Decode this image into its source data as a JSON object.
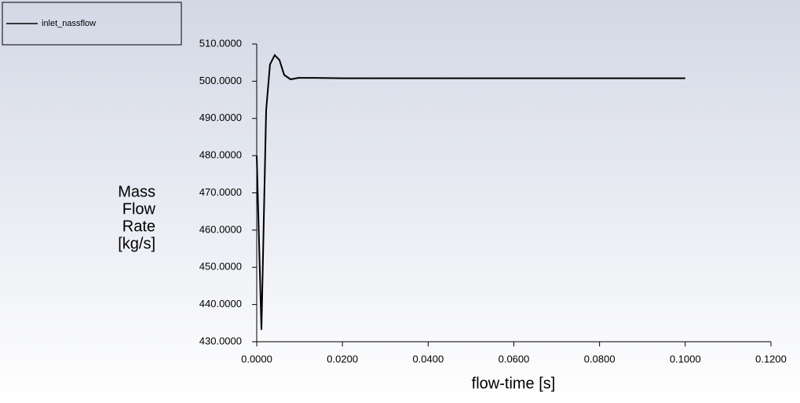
{
  "chart_data": {
    "type": "line",
    "xlabel": "flow-time [s]",
    "ylabel": [
      "Mass",
      "Flow",
      "Rate",
      "[kg/s]"
    ],
    "legend": "top-left",
    "series": [
      {
        "name": "inlet_nassflow",
        "color": "#000000",
        "x": [
          0,
          0.0011,
          0.0022,
          0.0031,
          0.0042,
          0.0053,
          0.0064,
          0.0079,
          0.0097,
          0.0134,
          0.02,
          0.1
        ],
        "values": [
          480,
          433.2,
          492.2,
          504.5,
          507.0,
          505.7,
          501.7,
          500.5,
          500.9,
          500.9,
          500.8,
          500.8
        ]
      }
    ],
    "xlim": [
      0,
      0.12
    ],
    "xticks": [
      {
        "value": 0,
        "label": "0.0000"
      },
      {
        "value": 0.02,
        "label": "0.0200"
      },
      {
        "value": 0.04,
        "label": "0.0400"
      },
      {
        "value": 0.06,
        "label": "0.0600"
      },
      {
        "value": 0.08,
        "label": "0.0800"
      },
      {
        "value": 0.1,
        "label": "0.1000"
      },
      {
        "value": 0.12,
        "label": "0.1200"
      }
    ],
    "ylim": [
      430,
      510
    ],
    "yticks": [
      {
        "value": 430,
        "label": "430.0000"
      },
      {
        "value": 440,
        "label": "440.0000"
      },
      {
        "value": 450,
        "label": "450.0000"
      },
      {
        "value": 460,
        "label": "460.0000"
      },
      {
        "value": 470,
        "label": "470.0000"
      },
      {
        "value": 480,
        "label": "480.0000"
      },
      {
        "value": 490,
        "label": "490.0000"
      },
      {
        "value": 500,
        "label": "500.0000"
      },
      {
        "value": 510,
        "label": "510.0000"
      }
    ]
  }
}
